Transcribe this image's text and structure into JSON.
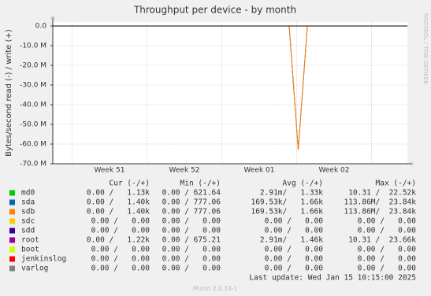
{
  "chart_data": {
    "type": "line",
    "title": "Throughput per device - by month",
    "y_label": "Bytes/second read (-) / write (+)",
    "side_label": "RRDTOOL / TOBI OETIKER",
    "ylim": [
      -70000000,
      2000000
    ],
    "yticks": [
      {
        "value": 0,
        "label": "0.0"
      },
      {
        "value": -10000000,
        "label": "-10.0 M"
      },
      {
        "value": -20000000,
        "label": "-20.0 M"
      },
      {
        "value": -30000000,
        "label": "-30.0 M"
      },
      {
        "value": -40000000,
        "label": "-40.0 M"
      },
      {
        "value": -50000000,
        "label": "-50.0 M"
      },
      {
        "value": -60000000,
        "label": "-60.0 M"
      },
      {
        "value": -70000000,
        "label": "-70.0 M"
      }
    ],
    "xticks": [
      "Week 51",
      "Week 52",
      "Week 01",
      "Week 02"
    ],
    "grid": true,
    "legend_columns": [
      "Cur (-/+)",
      "Min (-/+)",
      "Avg (-/+)",
      "Max (-/+)"
    ],
    "series": [
      {
        "name": "md0",
        "color": "#00cc00",
        "stats": [
          "0.00 /   1.13k",
          "0.00 / 621.64",
          "2.91m/   1.33k",
          "10.31 /  22.52k"
        ],
        "values": [
          0,
          0,
          0,
          0,
          0,
          0,
          0,
          0,
          0,
          0,
          0,
          0,
          0,
          0,
          0,
          0,
          0,
          0,
          0,
          0,
          0,
          0,
          0,
          0,
          0,
          0,
          0,
          0,
          0,
          0,
          0,
          0,
          0,
          0,
          0,
          0,
          0,
          0,
          0,
          0
        ]
      },
      {
        "name": "sda",
        "color": "#0066b3",
        "stats": [
          "0.00 /   1.40k",
          "0.00 / 777.06",
          "169.53k/   1.66k",
          "113.86M/  23.84k"
        ],
        "values": [
          0,
          0,
          0,
          0,
          0,
          0,
          0,
          0,
          0,
          0,
          0,
          0,
          0,
          0,
          0,
          0,
          0,
          0,
          0,
          0,
          0,
          0,
          0,
          0,
          0,
          0,
          0,
          -63000000,
          0,
          0,
          0,
          0,
          0,
          0,
          0,
          0,
          0,
          0,
          0,
          0
        ]
      },
      {
        "name": "sdb",
        "color": "#ff8000",
        "stats": [
          "0.00 /   1.40k",
          "0.00 / 777.06",
          "169.53k/   1.66k",
          "113.86M/  23.84k"
        ],
        "values": [
          0,
          0,
          0,
          0,
          0,
          0,
          0,
          0,
          0,
          0,
          0,
          0,
          0,
          0,
          0,
          0,
          0,
          0,
          0,
          0,
          0,
          0,
          0,
          0,
          0,
          0,
          0,
          -63000000,
          0,
          0,
          0,
          0,
          0,
          0,
          0,
          0,
          0,
          0,
          0,
          0
        ]
      },
      {
        "name": "sdc",
        "color": "#ffcc00",
        "stats": [
          "0.00 /   0.00",
          "0.00 /   0.00",
          "0.00 /   0.00",
          "0.00 /   0.00"
        ],
        "values": [
          0,
          0,
          0,
          0,
          0,
          0,
          0,
          0,
          0,
          0,
          0,
          0,
          0,
          0,
          0,
          0,
          0,
          0,
          0,
          0,
          0,
          0,
          0,
          0,
          0,
          0,
          0,
          0,
          0,
          0,
          0,
          0,
          0,
          0,
          0,
          0,
          0,
          0,
          0,
          0
        ]
      },
      {
        "name": "sdd",
        "color": "#330099",
        "stats": [
          "0.00 /   0.00",
          "0.00 /   0.00",
          "0.00 /   0.00",
          "0.00 /   0.00"
        ],
        "values": [
          0,
          0,
          0,
          0,
          0,
          0,
          0,
          0,
          0,
          0,
          0,
          0,
          0,
          0,
          0,
          0,
          0,
          0,
          0,
          0,
          0,
          0,
          0,
          0,
          0,
          0,
          0,
          0,
          0,
          0,
          0,
          0,
          0,
          0,
          0,
          0,
          0,
          0,
          0,
          0
        ]
      },
      {
        "name": "root",
        "color": "#990099",
        "stats": [
          "0.00 /   1.22k",
          "0.00 / 675.21",
          "2.91m/   1.46k",
          "10.31 /  23.66k"
        ],
        "values": [
          0,
          0,
          0,
          0,
          0,
          0,
          0,
          0,
          0,
          0,
          0,
          0,
          0,
          0,
          0,
          0,
          0,
          0,
          0,
          0,
          0,
          0,
          0,
          0,
          0,
          0,
          0,
          0,
          0,
          0,
          0,
          0,
          0,
          0,
          0,
          0,
          0,
          0,
          0,
          0
        ]
      },
      {
        "name": "boot",
        "color": "#ccff00",
        "stats": [
          "0.00 /   0.00",
          "0.00 /   0.00",
          "0.00 /   0.00",
          "0.00 /   0.00"
        ],
        "values": [
          0,
          0,
          0,
          0,
          0,
          0,
          0,
          0,
          0,
          0,
          0,
          0,
          0,
          0,
          0,
          0,
          0,
          0,
          0,
          0,
          0,
          0,
          0,
          0,
          0,
          0,
          0,
          0,
          0,
          0,
          0,
          0,
          0,
          0,
          0,
          0,
          0,
          0,
          0,
          0
        ]
      },
      {
        "name": "jenkinslog",
        "color": "#ff0000",
        "stats": [
          "0.00 /   0.00",
          "0.00 /   0.00",
          "0.00 /   0.00",
          "0.00 /   0.00"
        ],
        "values": [
          0,
          0,
          0,
          0,
          0,
          0,
          0,
          0,
          0,
          0,
          0,
          0,
          0,
          0,
          0,
          0,
          0,
          0,
          0,
          0,
          0,
          0,
          0,
          0,
          0,
          0,
          0,
          0,
          0,
          0,
          0,
          0,
          0,
          0,
          0,
          0,
          0,
          0,
          0,
          0
        ]
      },
      {
        "name": "varlog",
        "color": "#808080",
        "stats": [
          "0.00 /   0.00",
          "0.00 /   0.00",
          "0.00 /   0.00",
          "0.00 /   0.00"
        ],
        "values": [
          0,
          0,
          0,
          0,
          0,
          0,
          0,
          0,
          0,
          0,
          0,
          0,
          0,
          0,
          0,
          0,
          0,
          0,
          0,
          0,
          0,
          0,
          0,
          0,
          0,
          0,
          0,
          0,
          0,
          0,
          0,
          0,
          0,
          0,
          0,
          0,
          0,
          0,
          0,
          0
        ]
      }
    ],
    "last_update": "Last update: Wed Jan 15 10:15:00 2025",
    "footer": "Munin 2.0.33-1"
  }
}
